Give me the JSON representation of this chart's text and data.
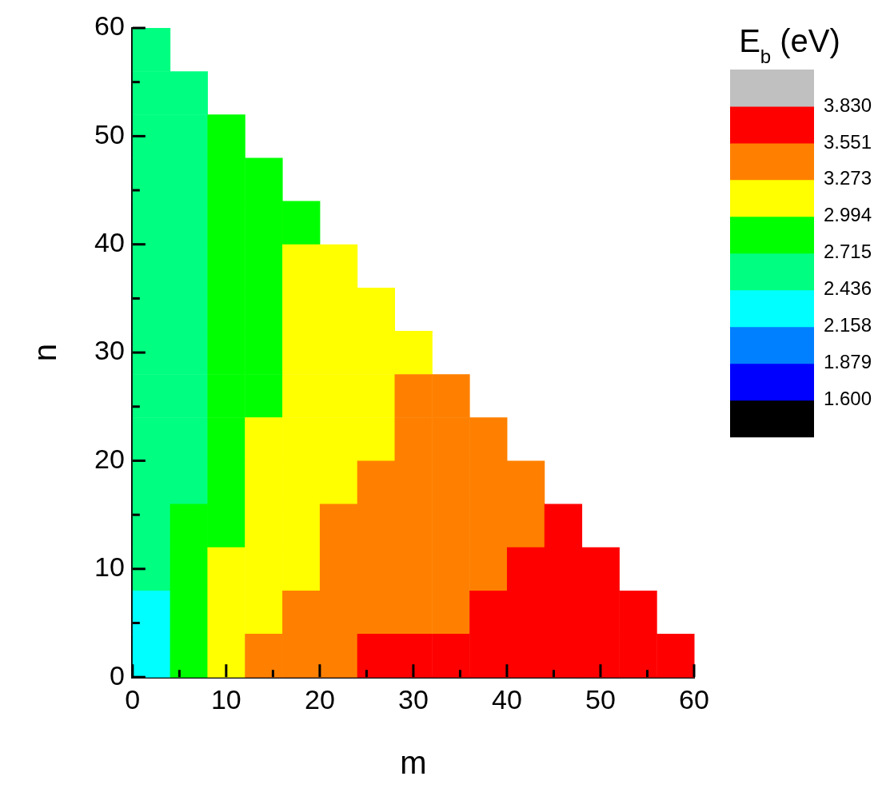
{
  "chart_data": {
    "type": "heatmap",
    "xlabel": "m",
    "ylabel": "n",
    "clabel": "E$_{b}$ (eV)",
    "x": [
      2,
      6,
      10,
      14,
      18,
      22,
      26,
      30,
      34,
      38,
      42,
      46,
      50,
      54,
      58
    ],
    "xlim": [
      0,
      60
    ],
    "ylim": [
      0,
      60
    ],
    "xticks": [
      0,
      {
        "value": 5,
        "label": null
      },
      10,
      {
        "value": 15,
        "label": null
      },
      20,
      {
        "value": 25,
        "label": null
      },
      30,
      {
        "value": 35,
        "label": null
      },
      40,
      {
        "value": 45,
        "label": null
      },
      50,
      {
        "value": 55,
        "label": null
      },
      60
    ],
    "yticks": [
      0,
      {
        "value": 5,
        "label": null
      },
      10,
      {
        "value": 15,
        "label": null
      },
      20,
      {
        "value": 25,
        "label": null
      },
      30,
      {
        "value": 35,
        "label": null
      },
      40,
      {
        "value": 45,
        "label": null
      },
      50,
      {
        "value": 55,
        "label": null
      },
      60
    ],
    "cells": [
      [
        2.58,
        null,
        null,
        null,
        null,
        null,
        null,
        null,
        null,
        null,
        null,
        null,
        null,
        null,
        null
      ],
      [
        2.58,
        2.58,
        null,
        null,
        null,
        null,
        null,
        null,
        null,
        null,
        null,
        null,
        null,
        null,
        null
      ],
      [
        2.58,
        2.58,
        2.85,
        null,
        null,
        null,
        null,
        null,
        null,
        null,
        null,
        null,
        null,
        null,
        null
      ],
      [
        2.58,
        2.58,
        2.85,
        2.85,
        null,
        null,
        null,
        null,
        null,
        null,
        null,
        null,
        null,
        null,
        null
      ],
      [
        2.58,
        2.58,
        2.85,
        2.85,
        2.85,
        null,
        null,
        null,
        null,
        null,
        null,
        null,
        null,
        null,
        null
      ],
      [
        2.58,
        2.58,
        2.85,
        2.85,
        3.13,
        3.13,
        null,
        null,
        null,
        null,
        null,
        null,
        null,
        null,
        null
      ],
      [
        2.58,
        2.58,
        2.85,
        2.85,
        3.13,
        3.13,
        3.13,
        null,
        null,
        null,
        null,
        null,
        null,
        null,
        null
      ],
      [
        2.58,
        2.58,
        2.85,
        2.85,
        3.13,
        3.13,
        3.13,
        3.13,
        null,
        null,
        null,
        null,
        null,
        null,
        null
      ],
      [
        2.58,
        2.58,
        2.85,
        2.85,
        3.13,
        3.13,
        3.13,
        3.41,
        3.41,
        null,
        null,
        null,
        null,
        null,
        null
      ],
      [
        2.58,
        2.58,
        2.85,
        3.13,
        3.13,
        3.13,
        3.13,
        3.41,
        3.41,
        3.41,
        null,
        null,
        null,
        null,
        null
      ],
      [
        2.58,
        2.58,
        2.85,
        3.13,
        3.13,
        3.13,
        3.41,
        3.41,
        3.41,
        3.41,
        3.41,
        null,
        null,
        null,
        null
      ],
      [
        2.58,
        2.85,
        2.85,
        3.13,
        3.13,
        3.41,
        3.41,
        3.41,
        3.41,
        3.41,
        3.41,
        3.69,
        null,
        null,
        null
      ],
      [
        2.58,
        2.85,
        3.13,
        3.13,
        3.13,
        3.41,
        3.41,
        3.41,
        3.41,
        3.41,
        3.69,
        3.69,
        3.69,
        null,
        null
      ],
      [
        2.3,
        2.85,
        3.13,
        3.13,
        3.41,
        3.41,
        3.41,
        3.41,
        3.41,
        3.69,
        3.69,
        3.69,
        3.69,
        3.69,
        null
      ],
      [
        2.3,
        2.85,
        3.13,
        3.41,
        3.41,
        3.41,
        3.69,
        3.69,
        3.69,
        3.69,
        3.69,
        3.69,
        3.69,
        3.69,
        3.69
      ]
    ],
    "clim": [
      1.321,
      4.109
    ],
    "cticks": [
      {
        "value": 1.6,
        "label": "1.600"
      },
      {
        "value": 1.879,
        "label": "1.879"
      },
      {
        "value": 2.158,
        "label": "2.158"
      },
      {
        "value": 2.436,
        "label": "2.436"
      },
      {
        "value": 2.715,
        "label": "2.715"
      },
      {
        "value": 2.994,
        "label": "2.994"
      },
      {
        "value": 3.273,
        "label": "3.273"
      },
      {
        "value": 3.551,
        "label": "3.551"
      },
      {
        "value": 3.83,
        "label": "3.830"
      }
    ],
    "colors": [
      "#000000",
      "#0000ff",
      "#0080ff",
      "#00ffff",
      "#00ff80",
      "#00ff00",
      "#ffff00",
      "#ff8000",
      "#ff0000",
      "#c0c0c0"
    ]
  }
}
